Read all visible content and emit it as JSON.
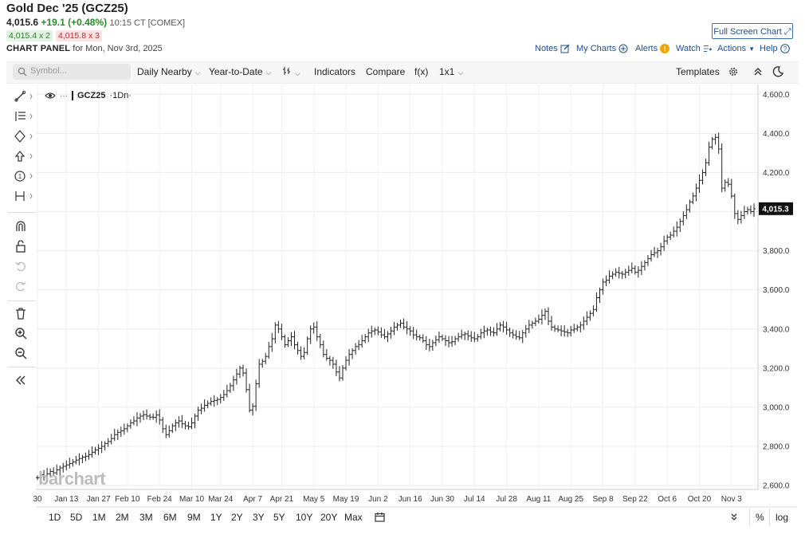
{
  "header": {
    "title": "Gold Dec '25 (GCZ25)",
    "last": "4,015.6",
    "change": "+19.1 (+0.48%)",
    "time": "10:15 CT [COMEX]",
    "bid": "4,015.4 x 2",
    "ask": "4,015.8 x 3",
    "panel_label": "CHART PANEL",
    "panel_date": "for Mon, Nov 3rd, 2025",
    "full_screen": "Full Screen Chart",
    "links": [
      "Notes",
      "My Charts",
      "Alerts",
      "Watch",
      "Actions",
      "Help"
    ]
  },
  "toolbar": {
    "symbol_placeholder": "Symbol...",
    "aggregation": "Daily Nearby",
    "range": "Year-to-Date",
    "indicators": "Indicators",
    "compare": "Compare",
    "fx": "f(x)",
    "layout": "1x1",
    "templates": "Templates"
  },
  "legend": {
    "symbol": "GCZ25",
    "interval": "·1Dn·"
  },
  "timeframes": [
    "1D",
    "5D",
    "1M",
    "2M",
    "3M",
    "6M",
    "9M",
    "1Y",
    "2Y",
    "3Y",
    "5Y",
    "10Y",
    "20Y",
    "Max"
  ],
  "bottom_right": {
    "percent": "%",
    "log": "log"
  },
  "watermark": "barchart",
  "colors": {
    "accent": "#1e4f96",
    "up": "#2a8a2a",
    "down": "#c02a2a",
    "bars": "#222222"
  },
  "chart_data": {
    "type": "ohlc",
    "price_label": "4,015.3",
    "y_ticks": [
      "4,600.0",
      "4,400.0",
      "4,200.0",
      "4,000.0",
      "3,800.0",
      "3,600.0",
      "3,400.0",
      "3,200.0",
      "3,000.0",
      "2,800.0",
      "2,600.0"
    ],
    "y_values": [
      4600,
      4400,
      4200,
      4000,
      3800,
      3600,
      3400,
      3200,
      3000,
      2800,
      2600
    ],
    "ylim": [
      2580,
      4650
    ],
    "x_ticks": [
      "30",
      "Jan 13",
      "Jan 27",
      "Feb 10",
      "Feb 24",
      "Mar 10",
      "Mar 24",
      "Apr 7",
      "Apr 21",
      "May 5",
      "May 19",
      "Jun 2",
      "Jun 16",
      "Jun 30",
      "Jul 14",
      "Jul 28",
      "Aug 11",
      "Aug 25",
      "Sep 8",
      "Sep 22",
      "Oct 6",
      "Oct 20",
      "Nov 3"
    ],
    "x_tick_index": [
      0,
      9,
      19,
      28,
      38,
      48,
      57,
      67,
      76,
      86,
      96,
      106,
      116,
      126,
      136,
      146,
      156,
      166,
      176,
      186,
      196,
      206,
      216
    ],
    "closes": [
      2640,
      2655,
      2648,
      2660,
      2672,
      2665,
      2680,
      2690,
      2698,
      2705,
      2712,
      2720,
      2730,
      2738,
      2745,
      2750,
      2758,
      2770,
      2782,
      2790,
      2800,
      2815,
      2825,
      2840,
      2860,
      2872,
      2880,
      2890,
      2905,
      2920,
      2930,
      2945,
      2955,
      2962,
      2955,
      2950,
      2948,
      2960,
      2935,
      2890,
      2860,
      2880,
      2905,
      2920,
      2930,
      2915,
      2905,
      2900,
      2920,
      2955,
      2985,
      2995,
      3010,
      3020,
      3030,
      3035,
      3040,
      3050,
      3065,
      3085,
      3110,
      3140,
      3170,
      3200,
      3175,
      3090,
      2985,
      3005,
      3120,
      3220,
      3235,
      3260,
      3310,
      3350,
      3420,
      3400,
      3360,
      3320,
      3340,
      3360,
      3320,
      3290,
      3260,
      3280,
      3350,
      3400,
      3410,
      3360,
      3320,
      3270,
      3250,
      3240,
      3220,
      3180,
      3150,
      3200,
      3240,
      3270,
      3290,
      3310,
      3320,
      3340,
      3360,
      3380,
      3390,
      3395,
      3385,
      3370,
      3360,
      3375,
      3390,
      3410,
      3420,
      3430,
      3410,
      3400,
      3390,
      3370,
      3360,
      3355,
      3340,
      3320,
      3310,
      3330,
      3345,
      3360,
      3350,
      3340,
      3330,
      3335,
      3350,
      3360,
      3370,
      3375,
      3365,
      3355,
      3350,
      3360,
      3380,
      3390,
      3395,
      3385,
      3380,
      3400,
      3420,
      3410,
      3395,
      3380,
      3370,
      3360,
      3355,
      3380,
      3400,
      3420,
      3430,
      3440,
      3450,
      3470,
      3490,
      3440,
      3410,
      3400,
      3395,
      3390,
      3385,
      3380,
      3395,
      3400,
      3410,
      3420,
      3440,
      3460,
      3480,
      3500,
      3560,
      3600,
      3640,
      3650,
      3670,
      3680,
      3690,
      3685,
      3680,
      3690,
      3700,
      3710,
      3690,
      3700,
      3720,
      3740,
      3760,
      3780,
      3790,
      3800,
      3820,
      3850,
      3870,
      3880,
      3900,
      3920,
      3950,
      3980,
      4010,
      4050,
      4080,
      4120,
      4160,
      4200,
      4250,
      4330,
      4370,
      4380,
      4320,
      4120,
      4150,
      4140,
      4080,
      3990,
      3960,
      3980,
      4000,
      4010,
      4000,
      4015
    ]
  }
}
